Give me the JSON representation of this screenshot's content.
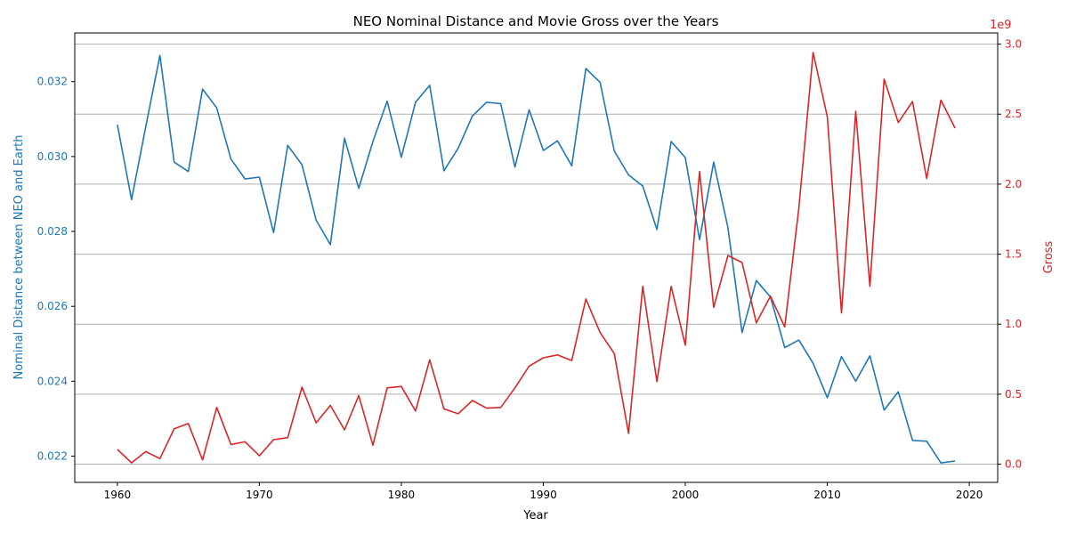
{
  "chart_data": {
    "type": "line",
    "title": "NEO Nominal Distance and Movie Gross over the Years",
    "xlabel": "Year",
    "ylabel_left": "Nominal Distance between NEO and Earth",
    "ylabel_right": "Gross",
    "right_axis_offset_label": "1e9",
    "xlim": [
      1957,
      2022
    ],
    "ylim_left": [
      0.0213,
      0.0333
    ],
    "ylim_right": [
      -0.13,
      3.08
    ],
    "x_ticks": [
      1960,
      1970,
      1980,
      1990,
      2000,
      2010,
      2020
    ],
    "x_tick_labels": [
      "1960",
      "1970",
      "1980",
      "1990",
      "2000",
      "2010",
      "2020"
    ],
    "y_left_ticks": [
      0.022,
      0.024,
      0.026,
      0.028,
      0.03,
      0.032
    ],
    "y_left_tick_labels": [
      "0.022",
      "0.024",
      "0.026",
      "0.028",
      "0.030",
      "0.032"
    ],
    "y_right_ticks": [
      0.0,
      0.5,
      1.0,
      1.5,
      2.0,
      2.5,
      3.0
    ],
    "y_right_tick_labels": [
      "0.0",
      "0.5",
      "1.0",
      "1.5",
      "2.0",
      "2.5",
      "3.0"
    ],
    "grid": "horizontal lines at right-axis ticks",
    "colors": {
      "left_series": "#1f77b4",
      "right_series": "#d62728",
      "grid": "#b0b0b0",
      "axes": "#000000"
    },
    "x": [
      1960,
      1961,
      1962,
      1963,
      1964,
      1965,
      1966,
      1967,
      1968,
      1969,
      1970,
      1971,
      1972,
      1973,
      1974,
      1975,
      1976,
      1977,
      1978,
      1979,
      1980,
      1981,
      1982,
      1983,
      1984,
      1985,
      1986,
      1987,
      1988,
      1989,
      1990,
      1991,
      1992,
      1993,
      1994,
      1995,
      1996,
      1997,
      1998,
      1999,
      2000,
      2001,
      2002,
      2003,
      2004,
      2005,
      2006,
      2007,
      2008,
      2009,
      2010,
      2011,
      2012,
      2013,
      2014,
      2015,
      2016,
      2017,
      2018,
      2019
    ],
    "series": [
      {
        "axis": "left",
        "values": [
          0.03085,
          0.02885,
          0.0308,
          0.0327,
          0.02985,
          0.0296,
          0.0318,
          0.0313,
          0.02993,
          0.0294,
          0.02945,
          0.02797,
          0.0303,
          0.02978,
          0.0283,
          0.02765,
          0.03049,
          0.02915,
          0.0304,
          0.03148,
          0.02998,
          0.03145,
          0.0319,
          0.02962,
          0.03022,
          0.03108,
          0.03145,
          0.03141,
          0.02972,
          0.03125,
          0.03016,
          0.03042,
          0.02975,
          0.03235,
          0.03198,
          0.03015,
          0.02951,
          0.02921,
          0.02805,
          0.0304,
          0.02997,
          0.02778,
          0.02985,
          0.0281,
          0.0253,
          0.02669,
          0.02625,
          0.0249,
          0.0251,
          0.02448,
          0.02356,
          0.02466,
          0.024,
          0.02468,
          0.02323,
          0.02372,
          0.02242,
          0.0224,
          0.02182,
          0.02187
        ]
      },
      {
        "axis": "right",
        "values": [
          0.105,
          0.01,
          0.09,
          0.04,
          0.253,
          0.29,
          0.03,
          0.405,
          0.14,
          0.16,
          0.06,
          0.175,
          0.19,
          0.55,
          0.295,
          0.42,
          0.245,
          0.49,
          0.135,
          0.545,
          0.555,
          0.38,
          0.745,
          0.395,
          0.36,
          0.455,
          0.4,
          0.405,
          0.545,
          0.7,
          0.76,
          0.78,
          0.74,
          1.18,
          0.94,
          0.79,
          0.22,
          1.27,
          0.59,
          1.27,
          0.85,
          2.09,
          1.12,
          1.49,
          1.44,
          1.01,
          1.2,
          0.98,
          1.83,
          2.94,
          2.48,
          1.08,
          2.52,
          1.27,
          2.75,
          2.44,
          2.59,
          2.04,
          2.6,
          2.4
        ]
      }
    ]
  }
}
